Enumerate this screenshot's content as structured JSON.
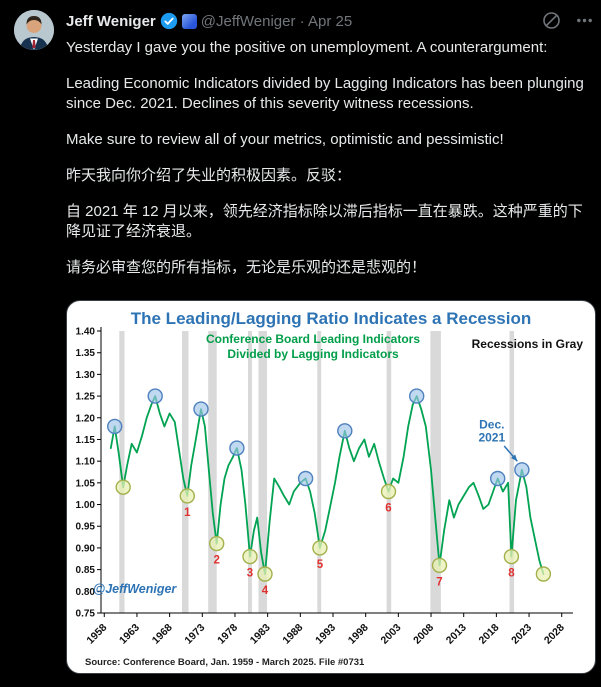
{
  "post": {
    "author": "Jeff Weniger",
    "handle_line": "@JeffWeniger · Apr 25",
    "paragraphs": [
      "Yesterday I gave you the positive on unemployment. A counterargument:",
      "Leading Economic Indicators divided by Lagging Indicators has been plunging since Dec. 2021. Declines of this severity witness recessions.",
      "Make sure to review all of your metrics, optimistic and pessimistic!",
      "昨天我向你介绍了失业的积极因素。反驳：",
      "自 2021 年 12 月以来，领先经济指标除以滞后指标一直在暴跌。这种严重的下降见证了经济衰退。",
      "请务必审查您的所有指标，无论是乐观的还是悲观的！"
    ]
  },
  "chart_data": {
    "type": "line",
    "title": "The Leading/Lagging Ratio Indicates a Recession",
    "subtitle_lines": [
      "Conference Board Leading Indicators",
      "Divided by Lagging Indicators"
    ],
    "note": "Recessions in Gray",
    "watermark": "@JeffWeniger",
    "source": "Source: Conference Board, Jan. 1959 - March 2025. File #0731",
    "xlim": [
      1957.5,
      2028.5
    ],
    "ylim": [
      0.75,
      1.4
    ],
    "x_ticks": [
      1958,
      1963,
      1968,
      1973,
      1978,
      1983,
      1988,
      1993,
      1998,
      2003,
      2008,
      2013,
      2018,
      2023,
      2028
    ],
    "y_ticks": [
      0.75,
      0.8,
      0.85,
      0.9,
      0.95,
      1.0,
      1.05,
      1.1,
      1.15,
      1.2,
      1.25,
      1.3,
      1.35,
      1.4
    ],
    "colors": {
      "line": "#00a352",
      "recession": "#d9d9d9",
      "peak_fill": "rgba(158,197,232,0.65)",
      "peak_stroke": "#4f81bd",
      "trough_fill": "rgba(234,240,180,0.75)",
      "trough_stroke": "#a3b04c",
      "number": "#e03131"
    },
    "recessions": [
      [
        1960.3,
        1961.1
      ],
      [
        1969.9,
        1970.9
      ],
      [
        1973.9,
        1975.2
      ],
      [
        1980.0,
        1980.6
      ],
      [
        1981.6,
        1982.9
      ],
      [
        1990.6,
        1991.2
      ],
      [
        2001.2,
        2001.9
      ],
      [
        2007.9,
        2009.5
      ],
      [
        2020.0,
        2020.7
      ]
    ],
    "series": [
      [
        1959.0,
        1.13
      ],
      [
        1959.6,
        1.18
      ],
      [
        1960.2,
        1.12
      ],
      [
        1960.9,
        1.04
      ],
      [
        1961.5,
        1.09
      ],
      [
        1962.2,
        1.14
      ],
      [
        1963.0,
        1.12
      ],
      [
        1963.8,
        1.16
      ],
      [
        1964.5,
        1.2
      ],
      [
        1965.2,
        1.23
      ],
      [
        1965.8,
        1.25
      ],
      [
        1966.5,
        1.21
      ],
      [
        1967.2,
        1.18
      ],
      [
        1968.0,
        1.21
      ],
      [
        1968.8,
        1.19
      ],
      [
        1969.5,
        1.12
      ],
      [
        1970.1,
        1.06
      ],
      [
        1970.7,
        1.02
      ],
      [
        1971.3,
        1.09
      ],
      [
        1972.0,
        1.15
      ],
      [
        1972.8,
        1.22
      ],
      [
        1973.4,
        1.18
      ],
      [
        1974.0,
        1.08
      ],
      [
        1974.6,
        0.98
      ],
      [
        1975.2,
        0.91
      ],
      [
        1975.8,
        1.0
      ],
      [
        1976.4,
        1.06
      ],
      [
        1977.0,
        1.09
      ],
      [
        1977.7,
        1.11
      ],
      [
        1978.3,
        1.13
      ],
      [
        1979.0,
        1.08
      ],
      [
        1979.6,
        1.0
      ],
      [
        1980.3,
        0.88
      ],
      [
        1980.9,
        0.94
      ],
      [
        1981.4,
        0.97
      ],
      [
        1982.0,
        0.89
      ],
      [
        1982.6,
        0.84
      ],
      [
        1983.3,
        0.96
      ],
      [
        1984.0,
        1.06
      ],
      [
        1984.8,
        1.04
      ],
      [
        1985.5,
        1.02
      ],
      [
        1986.3,
        1.0
      ],
      [
        1987.0,
        1.03
      ],
      [
        1988.0,
        1.05
      ],
      [
        1988.8,
        1.06
      ],
      [
        1989.5,
        1.03
      ],
      [
        1990.2,
        0.98
      ],
      [
        1991.0,
        0.9
      ],
      [
        1991.8,
        0.94
      ],
      [
        1992.5,
        0.99
      ],
      [
        1993.3,
        1.05
      ],
      [
        1994.0,
        1.11
      ],
      [
        1994.8,
        1.17
      ],
      [
        1995.5,
        1.13
      ],
      [
        1996.2,
        1.1
      ],
      [
        1997.0,
        1.13
      ],
      [
        1997.8,
        1.15
      ],
      [
        1998.5,
        1.11
      ],
      [
        1999.3,
        1.14
      ],
      [
        2000.0,
        1.1
      ],
      [
        2000.8,
        1.06
      ],
      [
        2001.5,
        1.03
      ],
      [
        2002.2,
        1.06
      ],
      [
        2003.0,
        1.05
      ],
      [
        2003.8,
        1.11
      ],
      [
        2004.5,
        1.18
      ],
      [
        2005.2,
        1.23
      ],
      [
        2005.8,
        1.25
      ],
      [
        2006.5,
        1.22
      ],
      [
        2007.2,
        1.18
      ],
      [
        2008.0,
        1.08
      ],
      [
        2008.7,
        0.96
      ],
      [
        2009.3,
        0.86
      ],
      [
        2010.0,
        0.94
      ],
      [
        2010.8,
        1.01
      ],
      [
        2011.5,
        0.97
      ],
      [
        2012.2,
        1.0
      ],
      [
        2013.0,
        1.02
      ],
      [
        2013.8,
        1.04
      ],
      [
        2014.5,
        1.05
      ],
      [
        2015.3,
        1.02
      ],
      [
        2016.0,
        0.99
      ],
      [
        2016.8,
        1.0
      ],
      [
        2017.5,
        1.03
      ],
      [
        2018.2,
        1.06
      ],
      [
        2019.0,
        1.03
      ],
      [
        2019.8,
        1.05
      ],
      [
        2020.3,
        0.88
      ],
      [
        2021.0,
        1.01
      ],
      [
        2021.9,
        1.08
      ],
      [
        2022.6,
        1.04
      ],
      [
        2023.2,
        0.97
      ],
      [
        2023.9,
        0.92
      ],
      [
        2024.6,
        0.87
      ],
      [
        2025.2,
        0.84
      ]
    ],
    "peaks": [
      [
        1959.6,
        1.18
      ],
      [
        1965.8,
        1.25
      ],
      [
        1972.8,
        1.22
      ],
      [
        1978.3,
        1.13
      ],
      [
        1988.8,
        1.06
      ],
      [
        1994.8,
        1.17
      ],
      [
        2005.8,
        1.25
      ],
      [
        2018.2,
        1.06
      ],
      [
        2021.9,
        1.08
      ]
    ],
    "troughs": [
      {
        "x": 1960.9,
        "y": 1.04,
        "label": ""
      },
      {
        "x": 1970.7,
        "y": 1.02,
        "label": "1"
      },
      {
        "x": 1975.2,
        "y": 0.91,
        "label": "2"
      },
      {
        "x": 1980.3,
        "y": 0.88,
        "label": "3"
      },
      {
        "x": 1982.6,
        "y": 0.84,
        "label": "4"
      },
      {
        "x": 1991.0,
        "y": 0.9,
        "label": "5"
      },
      {
        "x": 2001.5,
        "y": 1.03,
        "label": "6"
      },
      {
        "x": 2009.3,
        "y": 0.86,
        "label": "7"
      },
      {
        "x": 2020.3,
        "y": 0.88,
        "label": "8"
      },
      {
        "x": 2025.2,
        "y": 0.84,
        "label": ""
      }
    ],
    "annotation": {
      "lines": [
        "Dec.",
        "2021"
      ],
      "x": 2017.3,
      "y": 1.175,
      "color": "#2e74b5",
      "arrow": [
        2019.2,
        1.135,
        2021.2,
        1.1
      ]
    }
  }
}
